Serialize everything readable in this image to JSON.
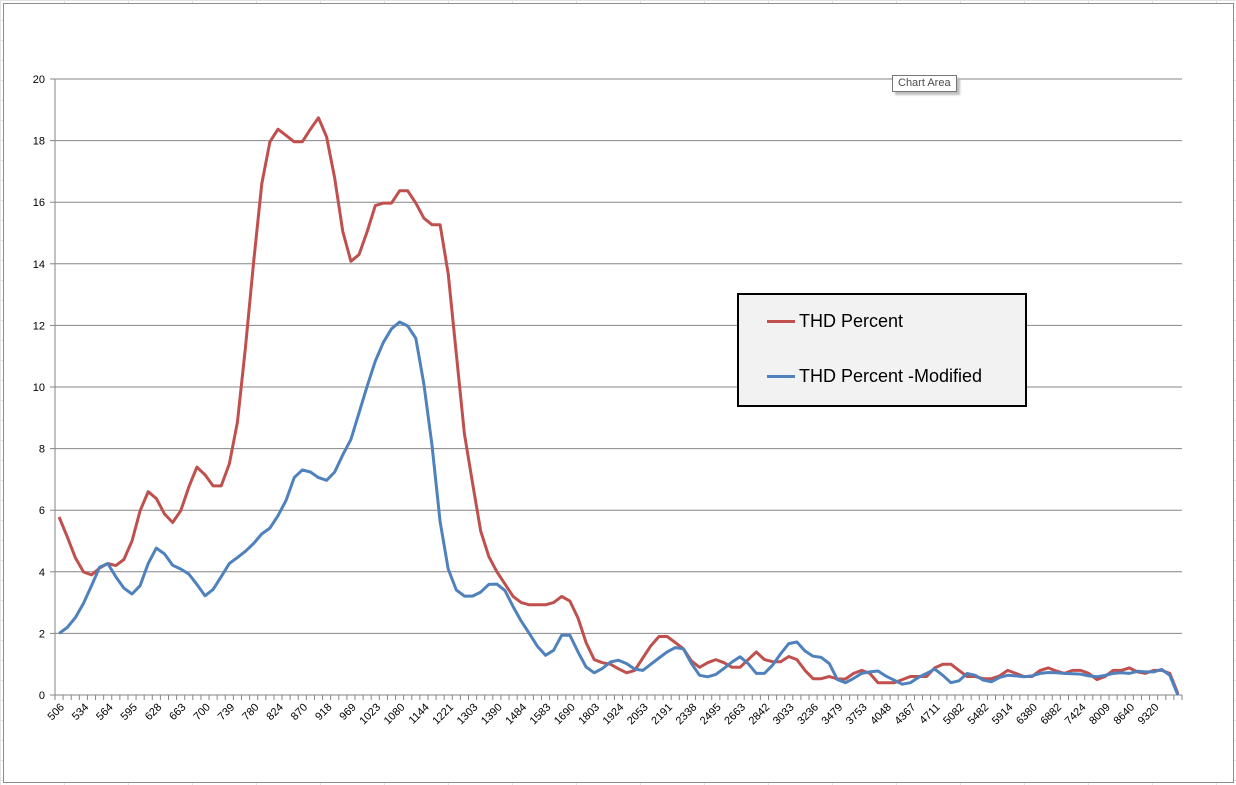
{
  "chart_data": {
    "type": "line",
    "title": "",
    "xlabel": "",
    "ylabel": "",
    "ylim": [
      0,
      20
    ],
    "ytick_step": 2,
    "grid": "horizontal",
    "legend_position": "right-center",
    "x_label_interval": 3,
    "x_tick_labels": [
      "506",
      "534",
      "564",
      "595",
      "628",
      "663",
      "700",
      "739",
      "780",
      "824",
      "870",
      "918",
      "969",
      "1023",
      "1080",
      "1144",
      "1221",
      "1303",
      "1390",
      "1484",
      "1583",
      "1690",
      "1803",
      "1924",
      "2053",
      "2191",
      "2338",
      "2495",
      "2663",
      "2842",
      "3033",
      "3236",
      "3479",
      "3753",
      "4048",
      "4367",
      "4711",
      "5082",
      "5482",
      "5914",
      "6380",
      "6882",
      "7424",
      "8009",
      "8640",
      "9320"
    ],
    "series": [
      {
        "name": "THD Percent",
        "color": "#c0504d",
        "values": [
          5.78,
          5.14,
          4.46,
          4.0,
          3.9,
          4.12,
          4.27,
          4.2,
          4.4,
          5.0,
          5.98,
          6.6,
          6.38,
          5.88,
          5.6,
          5.98,
          6.75,
          7.4,
          7.15,
          6.79,
          6.79,
          7.5,
          8.85,
          11.3,
          14.05,
          16.6,
          17.96,
          18.37,
          18.17,
          17.96,
          17.96,
          18.37,
          18.74,
          18.12,
          16.78,
          15.05,
          14.08,
          14.3,
          15.05,
          15.89,
          15.97,
          15.97,
          16.37,
          16.37,
          15.97,
          15.48,
          15.27,
          15.27,
          13.68,
          11.08,
          8.48,
          6.87,
          5.32,
          4.5,
          4.0,
          3.6,
          3.2,
          3.0,
          2.93,
          2.93,
          2.93,
          3.0,
          3.2,
          3.05,
          2.5,
          1.7,
          1.15,
          1.05,
          1.0,
          0.85,
          0.72,
          0.8,
          1.2,
          1.6,
          1.9,
          1.9,
          1.7,
          1.5,
          1.1,
          0.9,
          1.05,
          1.15,
          1.05,
          0.9,
          0.9,
          1.15,
          1.4,
          1.15,
          1.08,
          1.08,
          1.25,
          1.15,
          0.8,
          0.53,
          0.53,
          0.6,
          0.52,
          0.52,
          0.7,
          0.8,
          0.7,
          0.4,
          0.4,
          0.4,
          0.5,
          0.6,
          0.6,
          0.6,
          0.88,
          1.0,
          1.0,
          0.8,
          0.6,
          0.6,
          0.53,
          0.53,
          0.62,
          0.8,
          0.7,
          0.6,
          0.6,
          0.8,
          0.88,
          0.78,
          0.7,
          0.8,
          0.8,
          0.7,
          0.5,
          0.6,
          0.8,
          0.8,
          0.88,
          0.75,
          0.7,
          0.8,
          0.8,
          0.7,
          0.05
        ]
      },
      {
        "name": "THD Percent -Modified",
        "color": "#4f81bd",
        "values": [
          2.0,
          2.19,
          2.51,
          2.97,
          3.55,
          4.15,
          4.27,
          3.84,
          3.47,
          3.28,
          3.55,
          4.27,
          4.77,
          4.58,
          4.21,
          4.09,
          3.93,
          3.59,
          3.22,
          3.43,
          3.84,
          4.27,
          4.46,
          4.67,
          4.92,
          5.23,
          5.42,
          5.82,
          6.32,
          7.06,
          7.31,
          7.24,
          7.06,
          6.97,
          7.24,
          7.8,
          8.3,
          9.16,
          10.03,
          10.84,
          11.45,
          11.89,
          12.11,
          11.98,
          11.58,
          10.09,
          8.11,
          5.63,
          4.09,
          3.41,
          3.21,
          3.21,
          3.34,
          3.59,
          3.6,
          3.39,
          2.87,
          2.4,
          2.0,
          1.58,
          1.29,
          1.45,
          1.94,
          1.94,
          1.4,
          0.91,
          0.72,
          0.86,
          1.07,
          1.13,
          1.02,
          0.84,
          0.8,
          1.0,
          1.2,
          1.4,
          1.54,
          1.5,
          1.02,
          0.64,
          0.59,
          0.67,
          0.86,
          1.07,
          1.24,
          1.02,
          0.7,
          0.7,
          0.97,
          1.34,
          1.67,
          1.72,
          1.43,
          1.26,
          1.22,
          1.02,
          0.5,
          0.4,
          0.54,
          0.7,
          0.75,
          0.78,
          0.61,
          0.48,
          0.35,
          0.4,
          0.57,
          0.7,
          0.84,
          0.64,
          0.4,
          0.46,
          0.7,
          0.64,
          0.48,
          0.43,
          0.57,
          0.64,
          0.62,
          0.59,
          0.62,
          0.7,
          0.73,
          0.72,
          0.7,
          0.69,
          0.68,
          0.62,
          0.59,
          0.64,
          0.7,
          0.72,
          0.7,
          0.77,
          0.75,
          0.75,
          0.83,
          0.64,
          0.0
        ]
      }
    ]
  },
  "tooltip": "Chart Area"
}
